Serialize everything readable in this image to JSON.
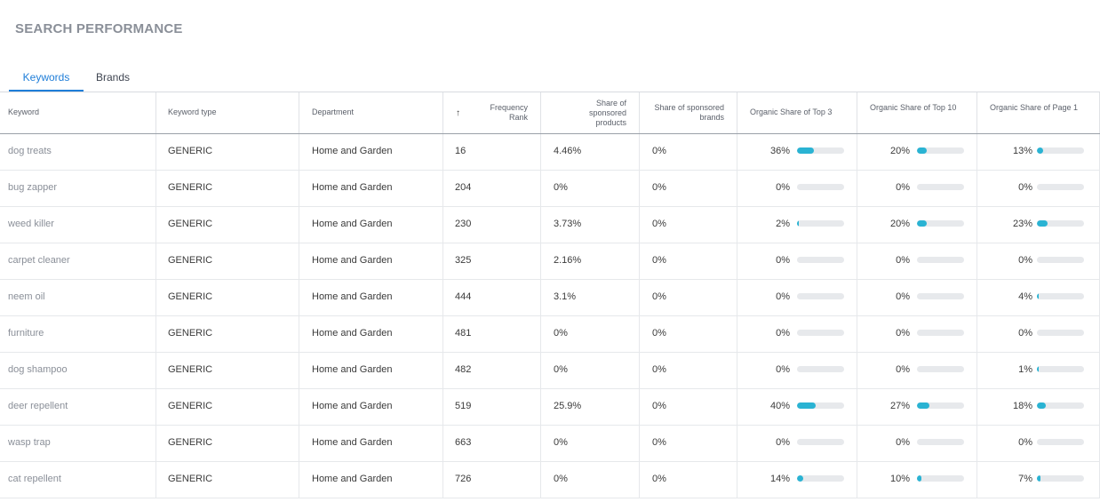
{
  "page": {
    "title": "SEARCH PERFORMANCE"
  },
  "tabs": [
    {
      "label": "Keywords",
      "active": true
    },
    {
      "label": "Brands",
      "active": false
    }
  ],
  "colors": {
    "accent": "#1f7ed8",
    "bar_fill": "#2ab3d3",
    "bar_track": "#e7e9ec"
  },
  "table": {
    "columns": [
      "Keyword",
      "Keyword type",
      "Department",
      "Frequency Rank",
      "Share of sponsored products",
      "Share of sponsored brands",
      "Organic Share of Top 3",
      "Organic Share of Top 10",
      "Organic Share of Page 1"
    ],
    "sort_icon": "arrow-up-icon",
    "rows": [
      {
        "keyword": "dog treats",
        "type": "GENERIC",
        "department": "Home and Garden",
        "rank": "16",
        "sp": "4.46%",
        "sb": "0%",
        "top3": "36%",
        "top3_v": 36,
        "top10": "20%",
        "top10_v": 20,
        "page1": "13%",
        "page1_v": 13
      },
      {
        "keyword": "bug zapper",
        "type": "GENERIC",
        "department": "Home and Garden",
        "rank": "204",
        "sp": "0%",
        "sb": "0%",
        "top3": "0%",
        "top3_v": 0,
        "top10": "0%",
        "top10_v": 0,
        "page1": "0%",
        "page1_v": 0
      },
      {
        "keyword": "weed killer",
        "type": "GENERIC",
        "department": "Home and Garden",
        "rank": "230",
        "sp": "3.73%",
        "sb": "0%",
        "top3": "2%",
        "top3_v": 2,
        "top10": "20%",
        "top10_v": 20,
        "page1": "23%",
        "page1_v": 23
      },
      {
        "keyword": "carpet cleaner",
        "type": "GENERIC",
        "department": "Home and Garden",
        "rank": "325",
        "sp": "2.16%",
        "sb": "0%",
        "top3": "0%",
        "top3_v": 0,
        "top10": "0%",
        "top10_v": 0,
        "page1": "0%",
        "page1_v": 0
      },
      {
        "keyword": "neem oil",
        "type": "GENERIC",
        "department": "Home and Garden",
        "rank": "444",
        "sp": "3.1%",
        "sb": "0%",
        "top3": "0%",
        "top3_v": 0,
        "top10": "0%",
        "top10_v": 0,
        "page1": "4%",
        "page1_v": 4
      },
      {
        "keyword": "furniture",
        "type": "GENERIC",
        "department": "Home and Garden",
        "rank": "481",
        "sp": "0%",
        "sb": "0%",
        "top3": "0%",
        "top3_v": 0,
        "top10": "0%",
        "top10_v": 0,
        "page1": "0%",
        "page1_v": 0
      },
      {
        "keyword": "dog shampoo",
        "type": "GENERIC",
        "department": "Home and Garden",
        "rank": "482",
        "sp": "0%",
        "sb": "0%",
        "top3": "0%",
        "top3_v": 0,
        "top10": "0%",
        "top10_v": 0,
        "page1": "1%",
        "page1_v": 1
      },
      {
        "keyword": "deer repellent",
        "type": "GENERIC",
        "department": "Home and Garden",
        "rank": "519",
        "sp": "25.9%",
        "sb": "0%",
        "top3": "40%",
        "top3_v": 40,
        "top10": "27%",
        "top10_v": 27,
        "page1": "18%",
        "page1_v": 18
      },
      {
        "keyword": "wasp trap",
        "type": "GENERIC",
        "department": "Home and Garden",
        "rank": "663",
        "sp": "0%",
        "sb": "0%",
        "top3": "0%",
        "top3_v": 0,
        "top10": "0%",
        "top10_v": 0,
        "page1": "0%",
        "page1_v": 0
      },
      {
        "keyword": "cat repellent",
        "type": "GENERIC",
        "department": "Home and Garden",
        "rank": "726",
        "sp": "0%",
        "sb": "0%",
        "top3": "14%",
        "top3_v": 14,
        "top10": "10%",
        "top10_v": 10,
        "page1": "7%",
        "page1_v": 7
      }
    ]
  }
}
